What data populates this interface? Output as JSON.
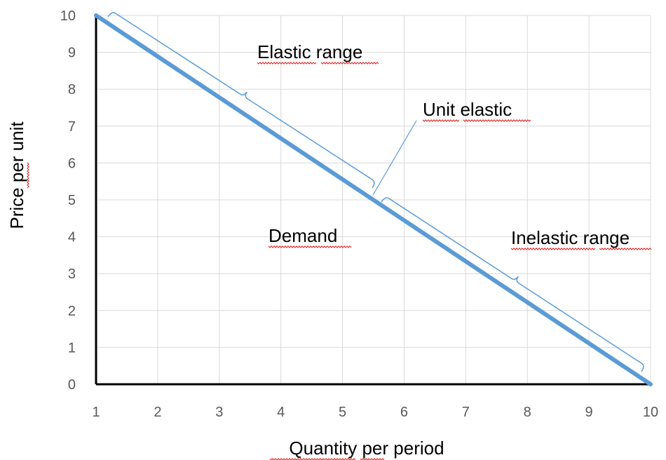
{
  "chart_data": {
    "type": "line",
    "xlabel": "Quantity per period",
    "ylabel": "Price per unit",
    "x_ticks": [
      1,
      2,
      3,
      4,
      5,
      6,
      7,
      8,
      9,
      10
    ],
    "y_ticks": [
      0,
      1,
      2,
      3,
      4,
      5,
      6,
      7,
      8,
      9,
      10
    ],
    "xlim": [
      1,
      10
    ],
    "ylim": [
      0,
      10
    ],
    "grid": true,
    "legend": "none",
    "series": [
      {
        "points": [
          [
            1,
            10
          ],
          [
            10,
            0
          ]
        ],
        "color": "#5b9bd5"
      }
    ],
    "annotations": {
      "elastic": "Elastic range",
      "unit": "Unit elastic",
      "demand": "Demand",
      "inelastic": "Inelastic range"
    }
  }
}
